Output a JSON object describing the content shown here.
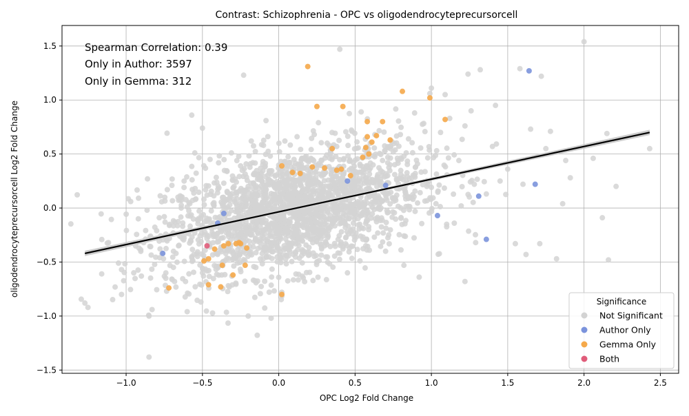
{
  "chart_data": {
    "type": "scatter",
    "title": "Contrast: Schizophrenia - OPC vs oligodendrocyteprecursorcell",
    "xlabel": "OPC Log2 Fold Change",
    "ylabel": "oligodendrocyteprecursorcell Log2 Fold Change",
    "xlim": [
      -1.42,
      2.62
    ],
    "ylim": [
      -1.53,
      1.69
    ],
    "xticks": [
      -1.0,
      -0.5,
      0.0,
      0.5,
      1.0,
      1.5,
      2.0,
      2.5
    ],
    "yticks": [
      -1.5,
      -1.0,
      -0.5,
      0.0,
      0.5,
      1.0,
      1.5
    ],
    "xtick_labels": [
      "−1.0",
      "−0.5",
      "0.0",
      "0.5",
      "1.0",
      "1.5",
      "2.0",
      "2.5"
    ],
    "ytick_labels": [
      "−1.5",
      "−1.0",
      "−0.5",
      "0.0",
      "0.5",
      "1.0",
      "1.5"
    ],
    "grid": true,
    "annotations": [
      "Spearman Correlation: 0.39",
      "Only in Author: 3597",
      "Only in Gemma: 312"
    ],
    "legend": {
      "title": "Significance",
      "placement": "lower-right",
      "entries": [
        {
          "label": "Not Significant",
          "color": "#d3d3d3"
        },
        {
          "label": "Author Only",
          "color": "#7b93dc"
        },
        {
          "label": "Gemma Only",
          "color": "#f5a94a"
        },
        {
          "label": "Both",
          "color": "#e05c7a"
        }
      ]
    },
    "regression_line": {
      "x": [
        -1.27,
        2.43
      ],
      "y": [
        -0.42,
        0.7
      ],
      "color": "#000000",
      "band_color": "#c8c8c8"
    },
    "series": [
      {
        "name": "Not Significant",
        "color": "#d3d3d3",
        "x": [
          -1.27,
          -1.25,
          -1.16,
          -1.05,
          -1.03,
          -1.03,
          -0.97,
          -0.95,
          -0.92,
          -0.9,
          -0.86,
          -0.85,
          -0.84,
          -0.83,
          -0.8,
          -0.78,
          -0.75,
          -0.73,
          -0.7,
          -0.68,
          -0.66,
          -0.62,
          -0.6,
          -0.57,
          -0.57,
          -0.55,
          -0.51,
          -0.5,
          -0.5,
          -0.45,
          -0.43,
          -0.4,
          -0.36,
          -0.32,
          -0.31,
          -0.25,
          -0.23,
          -0.2,
          -0.18,
          -0.15,
          -0.1,
          -0.05,
          0.0,
          0.02,
          0.04,
          0.08,
          0.1,
          0.12,
          0.15,
          0.18,
          0.2,
          0.22,
          0.26,
          0.3,
          0.33,
          0.38,
          0.4,
          0.45,
          0.48,
          0.5,
          0.54,
          0.57,
          0.6,
          0.63,
          0.68,
          0.7,
          0.75,
          0.8,
          0.82,
          0.85,
          0.89,
          0.92,
          0.97,
          0.99,
          1.0,
          1.03,
          1.06,
          1.09,
          1.12,
          1.15,
          1.18,
          1.22,
          1.24,
          1.26,
          1.29,
          1.32,
          1.36,
          1.4,
          1.42,
          1.45,
          1.5,
          1.55,
          1.58,
          1.6,
          1.62,
          1.65,
          1.72,
          1.75,
          1.78,
          1.82,
          1.86,
          1.88,
          1.91,
          2.0,
          2.06,
          2.12,
          2.15,
          2.16,
          2.21,
          2.43,
          -0.85,
          -0.74,
          -0.6,
          -0.05,
          0.37,
          1.22,
          1.71,
          1.1,
          0.82
        ],
        "y": [
          -0.88,
          -0.92,
          -0.61,
          -0.51,
          -0.8,
          -0.57,
          0.06,
          -0.6,
          -0.1,
          -0.63,
          0.27,
          -1.0,
          -0.26,
          -0.94,
          -0.21,
          -0.46,
          -0.08,
          0.17,
          0.21,
          -0.13,
          0.1,
          0.25,
          0.01,
          0.86,
          -0.45,
          0.51,
          -0.87,
          0.74,
          -0.6,
          0.45,
          0.04,
          -0.42,
          0.23,
          -0.4,
          0.51,
          0.39,
          1.23,
          -1.0,
          0.62,
          -0.55,
          0.58,
          -1.02,
          0.22,
          -0.78,
          0.62,
          -0.35,
          0.45,
          0.66,
          -0.44,
          0.48,
          0.15,
          0.38,
          0.79,
          -0.35,
          0.58,
          0.57,
          1.47,
          -0.6,
          0.71,
          0.2,
          0.89,
          -0.35,
          0.6,
          0.68,
          0.44,
          -0.4,
          0.52,
          0.19,
          -0.53,
          0.64,
          0.88,
          -0.64,
          0.2,
          1.06,
          1.11,
          0.04,
          0.7,
          1.05,
          0.83,
          -0.14,
          0.44,
          0.76,
          1.24,
          0.9,
          -0.32,
          1.28,
          0.13,
          0.57,
          0.95,
          0.25,
          0.36,
          -0.33,
          1.29,
          0.22,
          -0.43,
          0.73,
          1.22,
          0.55,
          0.71,
          -0.47,
          0.04,
          0.44,
          0.28,
          1.54,
          0.46,
          -0.09,
          0.69,
          -0.48,
          0.2,
          0.55,
          -1.38,
          -0.65,
          -0.96,
          -0.32,
          0.02,
          -0.68,
          -0.33,
          -0.15,
          0.48
        ],
        "cloud": {
          "center": [
            0.1,
            -0.02
          ],
          "count": 2200,
          "spread": [
            0.42,
            0.27
          ],
          "slope": 0.3
        }
      },
      {
        "name": "Author Only",
        "color": "#7b93dc",
        "x": [
          -0.76,
          -0.4,
          -0.36,
          0.45,
          0.7,
          1.04,
          1.31,
          1.36,
          1.64,
          1.68
        ],
        "y": [
          -0.42,
          -0.14,
          -0.05,
          0.25,
          0.21,
          -0.07,
          0.11,
          -0.29,
          1.27,
          0.22
        ]
      },
      {
        "name": "Gemma Only",
        "color": "#f5a94a",
        "x": [
          -0.72,
          -0.49,
          -0.46,
          -0.46,
          -0.42,
          -0.38,
          -0.37,
          -0.36,
          -0.33,
          -0.3,
          -0.28,
          -0.26,
          -0.25,
          -0.22,
          -0.21,
          0.02,
          0.02,
          0.09,
          0.14,
          0.19,
          0.22,
          0.25,
          0.3,
          0.35,
          0.38,
          0.41,
          0.42,
          0.47,
          0.55,
          0.57,
          0.58,
          0.58,
          0.59,
          0.61,
          0.64,
          0.68,
          0.73,
          0.81,
          0.99,
          1.09
        ],
        "y": [
          -0.74,
          -0.49,
          -0.47,
          -0.71,
          -0.38,
          -0.73,
          -0.53,
          -0.35,
          -0.33,
          -0.62,
          -0.33,
          -0.32,
          -0.33,
          -0.53,
          -0.37,
          -0.8,
          0.39,
          0.33,
          0.32,
          1.31,
          0.38,
          0.94,
          0.37,
          0.55,
          0.35,
          0.36,
          0.94,
          0.3,
          0.47,
          0.56,
          0.8,
          0.66,
          0.5,
          0.61,
          0.67,
          0.8,
          0.63,
          1.08,
          1.02,
          0.82
        ]
      },
      {
        "name": "Both",
        "color": "#e05c7a",
        "x": [
          -0.47
        ],
        "y": [
          -0.35
        ]
      }
    ]
  }
}
